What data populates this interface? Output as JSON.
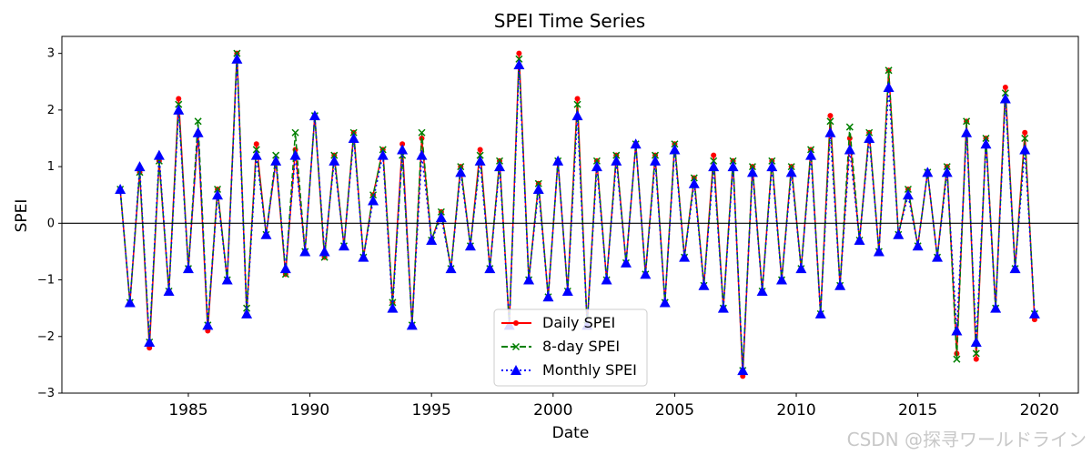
{
  "chart_data": {
    "type": "line",
    "title": "SPEI Time Series",
    "xlabel": "Date",
    "ylabel": "SPEI",
    "xlim": [
      1979.8,
      2021.6
    ],
    "ylim": [
      -3.0,
      3.3
    ],
    "xticks": [
      1985,
      1990,
      1995,
      2000,
      2005,
      2010,
      2015,
      2020
    ],
    "yticks": [
      -3,
      -2,
      -1,
      0,
      1,
      2,
      3
    ],
    "hline": 0,
    "legend_position": "lower center",
    "x": [
      1982.2,
      1982.6,
      1983.0,
      1983.4,
      1983.8,
      1984.2,
      1984.6,
      1985.0,
      1985.4,
      1985.8,
      1986.2,
      1986.6,
      1987.0,
      1987.4,
      1987.8,
      1988.2,
      1988.6,
      1989.0,
      1989.4,
      1989.8,
      1990.2,
      1990.6,
      1991.0,
      1991.4,
      1991.8,
      1992.2,
      1992.6,
      1993.0,
      1993.4,
      1993.8,
      1994.2,
      1994.6,
      1995.0,
      1995.4,
      1995.8,
      1996.2,
      1996.6,
      1997.0,
      1997.4,
      1997.8,
      1998.2,
      1998.6,
      1999.0,
      1999.4,
      1999.8,
      2000.2,
      2000.6,
      2001.0,
      2001.4,
      2001.8,
      2002.2,
      2002.6,
      2003.0,
      2003.4,
      2003.8,
      2004.2,
      2004.6,
      2005.0,
      2005.4,
      2005.8,
      2006.2,
      2006.6,
      2007.0,
      2007.4,
      2007.8,
      2008.2,
      2008.6,
      2009.0,
      2009.4,
      2009.8,
      2010.2,
      2010.6,
      2011.0,
      2011.4,
      2011.8,
      2012.2,
      2012.6,
      2013.0,
      2013.4,
      2013.8,
      2014.2,
      2014.6,
      2015.0,
      2015.4,
      2015.8,
      2016.2,
      2016.6,
      2017.0,
      2017.4,
      2017.8,
      2018.2,
      2018.6,
      2019.0,
      2019.4,
      2019.8
    ],
    "series": [
      {
        "name": "Daily SPEI",
        "color": "#ff0000",
        "marker": "circle",
        "linestyle": "solid",
        "values": [
          0.6,
          -1.4,
          0.9,
          -2.2,
          1.1,
          -1.2,
          2.2,
          -0.8,
          1.6,
          -1.9,
          0.6,
          -1.0,
          3.0,
          -1.6,
          1.4,
          -0.2,
          1.1,
          -0.9,
          1.3,
          -0.5,
          1.9,
          -0.6,
          1.2,
          -0.4,
          1.6,
          -0.6,
          0.5,
          1.3,
          -1.4,
          1.4,
          -1.8,
          1.5,
          -0.3,
          0.2,
          -0.8,
          1.0,
          -0.4,
          1.3,
          -0.8,
          1.1,
          -1.8,
          3.0,
          -1.0,
          0.7,
          -1.3,
          1.1,
          -1.2,
          2.2,
          -1.8,
          1.1,
          -1.0,
          1.2,
          -0.7,
          1.4,
          -0.9,
          1.2,
          -1.4,
          1.4,
          -0.6,
          0.8,
          -1.1,
          1.2,
          -1.5,
          1.1,
          -2.7,
          1.0,
          -1.2,
          1.1,
          -1.0,
          1.0,
          -0.8,
          1.3,
          -1.6,
          1.9,
          -1.1,
          1.5,
          -0.3,
          1.6,
          -0.5,
          2.7,
          -0.2,
          0.6,
          -0.4,
          0.9,
          -0.6,
          1.0,
          -2.3,
          1.8,
          -2.4,
          1.5,
          -1.5,
          2.4,
          -0.8,
          1.6,
          -1.7
        ]
      },
      {
        "name": "8-day SPEI",
        "color": "#008000",
        "marker": "x",
        "linestyle": "dashed",
        "values": [
          0.6,
          -1.4,
          0.9,
          -2.1,
          1.1,
          -1.2,
          2.1,
          -0.8,
          1.8,
          -1.8,
          0.6,
          -1.0,
          3.0,
          -1.5,
          1.3,
          -0.2,
          1.2,
          -0.9,
          1.6,
          -0.5,
          1.9,
          -0.6,
          1.2,
          -0.4,
          1.6,
          -0.6,
          0.5,
          1.3,
          -1.4,
          1.2,
          -1.8,
          1.6,
          -0.3,
          0.2,
          -0.8,
          1.0,
          -0.4,
          1.2,
          -0.8,
          1.1,
          -1.8,
          2.9,
          -1.0,
          0.7,
          -1.3,
          1.1,
          -1.2,
          2.1,
          -1.8,
          1.1,
          -1.0,
          1.2,
          -0.7,
          1.4,
          -0.9,
          1.2,
          -1.4,
          1.4,
          -0.6,
          0.8,
          -1.1,
          1.1,
          -1.5,
          1.1,
          -2.6,
          1.0,
          -1.2,
          1.1,
          -1.0,
          1.0,
          -0.8,
          1.3,
          -1.6,
          1.8,
          -1.1,
          1.7,
          -0.3,
          1.6,
          -0.5,
          2.7,
          -0.2,
          0.6,
          -0.4,
          0.9,
          -0.6,
          1.0,
          -2.4,
          1.8,
          -2.3,
          1.5,
          -1.5,
          2.3,
          -0.8,
          1.5,
          -1.6
        ]
      },
      {
        "name": "Monthly SPEI",
        "color": "#0000ff",
        "marker": "triangle",
        "linestyle": "dotted",
        "values": [
          0.6,
          -1.4,
          1.0,
          -2.1,
          1.2,
          -1.2,
          2.0,
          -0.8,
          1.6,
          -1.8,
          0.5,
          -1.0,
          2.9,
          -1.6,
          1.2,
          -0.2,
          1.1,
          -0.8,
          1.2,
          -0.5,
          1.9,
          -0.5,
          1.1,
          -0.4,
          1.5,
          -0.6,
          0.4,
          1.2,
          -1.5,
          1.3,
          -1.8,
          1.2,
          -0.3,
          0.1,
          -0.8,
          0.9,
          -0.4,
          1.1,
          -0.8,
          1.0,
          -1.8,
          2.8,
          -1.0,
          0.6,
          -1.3,
          1.1,
          -1.2,
          1.9,
          -1.8,
          1.0,
          -1.0,
          1.1,
          -0.7,
          1.4,
          -0.9,
          1.1,
          -1.4,
          1.3,
          -0.6,
          0.7,
          -1.1,
          1.0,
          -1.5,
          1.0,
          -2.6,
          0.9,
          -1.2,
          1.0,
          -1.0,
          0.9,
          -0.8,
          1.2,
          -1.6,
          1.6,
          -1.1,
          1.3,
          -0.3,
          1.5,
          -0.5,
          2.4,
          -0.2,
          0.5,
          -0.4,
          0.9,
          -0.6,
          0.9,
          -1.9,
          1.6,
          -2.1,
          1.4,
          -1.5,
          2.2,
          -0.8,
          1.3,
          -1.6
        ]
      }
    ]
  },
  "watermark": "CSDN @探寻ワールドライン"
}
